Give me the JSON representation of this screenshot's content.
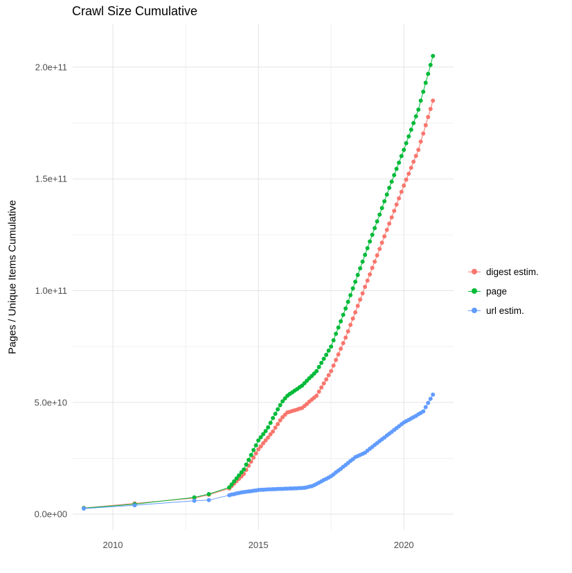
{
  "title": "Crawl Size Cumulative",
  "y_axis_label": "Pages / Unique Items Cumulative",
  "legend": {
    "items": [
      {
        "label": "digest estim.",
        "color": "#F8766D"
      },
      {
        "label": "page",
        "color": "#00BA38"
      },
      {
        "label": "url estim.",
        "color": "#619CFF"
      }
    ]
  },
  "chart_data": {
    "type": "line",
    "markers": true,
    "title": "Crawl Size Cumulative",
    "xlabel": "",
    "ylabel": "Pages / Unique Items Cumulative",
    "x_unit": "year",
    "y_values_unit": "billions (1e9) of pages / unique items",
    "xlim": [
      2008.62,
      2021.71
    ],
    "ylim_billions": [
      -7.1,
      219.2
    ],
    "grid": true,
    "legend_position": "right",
    "colors": {
      "grid_major": "#e3e3e3",
      "grid_minor": "#f0f0f0",
      "tick_label": "#4d4d4d",
      "background": "#ffffff"
    },
    "x_major_ticks": [
      {
        "value": 2010,
        "label": "2010"
      },
      {
        "value": 2015,
        "label": "2015"
      },
      {
        "value": 2020,
        "label": "2020"
      }
    ],
    "x_minor_ticks": [
      2012.5,
      2017.5
    ],
    "y_major_ticks": [
      {
        "value_billions": 0,
        "label": "0.0e+00"
      },
      {
        "value_billions": 50,
        "label": "5.0e+10"
      },
      {
        "value_billions": 100,
        "label": "1.0e+11"
      },
      {
        "value_billions": 150,
        "label": "1.5e+11"
      },
      {
        "value_billions": 200,
        "label": "2.0e+11"
      }
    ],
    "y_minor_ticks_billions": [
      25,
      75,
      125,
      175
    ],
    "series": [
      {
        "name": "digest estim.",
        "color": "#F8766D",
        "points": [
          [
            2009.0,
            2.8
          ],
          [
            2010.75,
            4.8
          ],
          [
            2012.8,
            7.2
          ],
          [
            2013.3,
            8.7
          ],
          [
            2014.0,
            11.5
          ],
          [
            2014.083,
            12.6
          ],
          [
            2014.167,
            13.7
          ],
          [
            2014.25,
            14.8
          ],
          [
            2014.333,
            15.8
          ],
          [
            2014.417,
            16.9
          ],
          [
            2014.5,
            18.0
          ],
          [
            2014.583,
            19.8
          ],
          [
            2014.667,
            21.7
          ],
          [
            2014.75,
            23.5
          ],
          [
            2014.833,
            25.3
          ],
          [
            2014.917,
            27.2
          ],
          [
            2015.0,
            29.0
          ],
          [
            2015.083,
            30.3
          ],
          [
            2015.167,
            31.7
          ],
          [
            2015.25,
            33.0
          ],
          [
            2015.333,
            34.3
          ],
          [
            2015.417,
            35.7
          ],
          [
            2015.5,
            37.0
          ],
          [
            2015.583,
            38.7
          ],
          [
            2015.667,
            40.3
          ],
          [
            2015.75,
            42.0
          ],
          [
            2015.833,
            43.4
          ],
          [
            2015.917,
            44.5
          ],
          [
            2016.0,
            45.5
          ],
          [
            2016.083,
            45.8
          ],
          [
            2016.167,
            46.2
          ],
          [
            2016.25,
            46.5
          ],
          [
            2016.333,
            46.8
          ],
          [
            2016.417,
            47.2
          ],
          [
            2016.5,
            47.5
          ],
          [
            2016.583,
            48.4
          ],
          [
            2016.667,
            49.3
          ],
          [
            2016.75,
            50.3
          ],
          [
            2016.833,
            51.2
          ],
          [
            2016.917,
            52.1
          ],
          [
            2017.0,
            53.0
          ],
          [
            2017.083,
            54.8
          ],
          [
            2017.167,
            56.7
          ],
          [
            2017.25,
            58.5
          ],
          [
            2017.333,
            60.3
          ],
          [
            2017.417,
            62.2
          ],
          [
            2017.5,
            64.0
          ],
          [
            2017.583,
            66.5
          ],
          [
            2017.667,
            69.0
          ],
          [
            2017.75,
            71.5
          ],
          [
            2017.833,
            74.0
          ],
          [
            2017.917,
            76.5
          ],
          [
            2018.0,
            79.0
          ],
          [
            2018.083,
            81.8
          ],
          [
            2018.167,
            84.7
          ],
          [
            2018.25,
            87.5
          ],
          [
            2018.333,
            90.3
          ],
          [
            2018.417,
            93.2
          ],
          [
            2018.5,
            96.0
          ],
          [
            2018.583,
            98.8
          ],
          [
            2018.667,
            101.7
          ],
          [
            2018.75,
            104.5
          ],
          [
            2018.833,
            107.3
          ],
          [
            2018.917,
            110.2
          ],
          [
            2019.0,
            113.0
          ],
          [
            2019.083,
            115.8
          ],
          [
            2019.167,
            118.7
          ],
          [
            2019.25,
            121.5
          ],
          [
            2019.333,
            124.3
          ],
          [
            2019.417,
            127.2
          ],
          [
            2019.5,
            130.0
          ],
          [
            2019.583,
            132.8
          ],
          [
            2019.667,
            135.7
          ],
          [
            2019.75,
            138.5
          ],
          [
            2019.833,
            141.3
          ],
          [
            2019.917,
            144.2
          ],
          [
            2020.0,
            147.0
          ],
          [
            2020.083,
            149.7
          ],
          [
            2020.167,
            152.3
          ],
          [
            2020.25,
            155.0
          ],
          [
            2020.333,
            157.7
          ],
          [
            2020.417,
            160.3
          ],
          [
            2020.5,
            163.0
          ],
          [
            2020.583,
            166.7
          ],
          [
            2020.667,
            170.3
          ],
          [
            2020.75,
            174.0
          ],
          [
            2020.833,
            177.7
          ],
          [
            2020.917,
            181.3
          ],
          [
            2021.0,
            185.0
          ]
        ]
      },
      {
        "name": "page",
        "color": "#00BA38",
        "points": [
          [
            2009.0,
            2.7
          ],
          [
            2010.75,
            4.5
          ],
          [
            2012.8,
            7.5
          ],
          [
            2013.3,
            9.0
          ],
          [
            2014.0,
            12.0
          ],
          [
            2014.083,
            13.3
          ],
          [
            2014.167,
            14.7
          ],
          [
            2014.25,
            16.0
          ],
          [
            2014.333,
            17.3
          ],
          [
            2014.417,
            18.7
          ],
          [
            2014.5,
            20.0
          ],
          [
            2014.583,
            22.2
          ],
          [
            2014.667,
            24.3
          ],
          [
            2014.75,
            26.5
          ],
          [
            2014.833,
            28.7
          ],
          [
            2014.917,
            30.8
          ],
          [
            2015.0,
            33.0
          ],
          [
            2015.083,
            34.4
          ],
          [
            2015.167,
            35.8
          ],
          [
            2015.25,
            37.2
          ],
          [
            2015.333,
            38.8
          ],
          [
            2015.417,
            40.9
          ],
          [
            2015.5,
            43.0
          ],
          [
            2015.583,
            44.9
          ],
          [
            2015.667,
            46.9
          ],
          [
            2015.75,
            48.8
          ],
          [
            2015.833,
            50.5
          ],
          [
            2015.917,
            51.8
          ],
          [
            2016.0,
            53.0
          ],
          [
            2016.083,
            53.8
          ],
          [
            2016.167,
            54.5
          ],
          [
            2016.25,
            55.3
          ],
          [
            2016.333,
            56.0
          ],
          [
            2016.417,
            56.8
          ],
          [
            2016.5,
            57.5
          ],
          [
            2016.583,
            58.6
          ],
          [
            2016.667,
            59.7
          ],
          [
            2016.75,
            60.8
          ],
          [
            2016.833,
            61.8
          ],
          [
            2016.917,
            62.9
          ],
          [
            2017.0,
            64.0
          ],
          [
            2017.083,
            65.8
          ],
          [
            2017.167,
            67.7
          ],
          [
            2017.25,
            69.5
          ],
          [
            2017.333,
            71.3
          ],
          [
            2017.417,
            73.2
          ],
          [
            2017.5,
            75.0
          ],
          [
            2017.583,
            77.8
          ],
          [
            2017.667,
            80.7
          ],
          [
            2017.75,
            83.5
          ],
          [
            2017.833,
            86.3
          ],
          [
            2017.917,
            89.2
          ],
          [
            2018.0,
            92.0
          ],
          [
            2018.083,
            95.0
          ],
          [
            2018.167,
            98.0
          ],
          [
            2018.25,
            101.0
          ],
          [
            2018.333,
            104.0
          ],
          [
            2018.417,
            107.0
          ],
          [
            2018.5,
            110.0
          ],
          [
            2018.583,
            113.0
          ],
          [
            2018.667,
            116.0
          ],
          [
            2018.75,
            119.0
          ],
          [
            2018.833,
            122.0
          ],
          [
            2018.917,
            125.0
          ],
          [
            2019.0,
            128.0
          ],
          [
            2019.083,
            131.0
          ],
          [
            2019.167,
            134.0
          ],
          [
            2019.25,
            137.0
          ],
          [
            2019.333,
            140.0
          ],
          [
            2019.417,
            143.0
          ],
          [
            2019.5,
            146.0
          ],
          [
            2019.583,
            148.8
          ],
          [
            2019.667,
            151.7
          ],
          [
            2019.75,
            154.5
          ],
          [
            2019.833,
            157.3
          ],
          [
            2019.917,
            160.2
          ],
          [
            2020.0,
            163.0
          ],
          [
            2020.083,
            166.0
          ],
          [
            2020.167,
            169.0
          ],
          [
            2020.25,
            172.0
          ],
          [
            2020.333,
            175.0
          ],
          [
            2020.417,
            178.0
          ],
          [
            2020.5,
            181.0
          ],
          [
            2020.583,
            185.0
          ],
          [
            2020.667,
            189.0
          ],
          [
            2020.75,
            193.0
          ],
          [
            2020.833,
            197.0
          ],
          [
            2020.917,
            201.0
          ],
          [
            2021.0,
            205.0
          ]
        ]
      },
      {
        "name": "url estim.",
        "color": "#619CFF",
        "points": [
          [
            2009.0,
            2.5
          ],
          [
            2010.75,
            4.0
          ],
          [
            2012.8,
            6.0
          ],
          [
            2013.3,
            6.3
          ],
          [
            2014.0,
            8.5
          ],
          [
            2014.083,
            8.8
          ],
          [
            2014.167,
            9.0
          ],
          [
            2014.25,
            9.3
          ],
          [
            2014.333,
            9.5
          ],
          [
            2014.417,
            9.7
          ],
          [
            2014.5,
            9.9
          ],
          [
            2014.583,
            10.0
          ],
          [
            2014.667,
            10.2
          ],
          [
            2014.75,
            10.3
          ],
          [
            2014.833,
            10.5
          ],
          [
            2014.917,
            10.6
          ],
          [
            2015.0,
            10.8
          ],
          [
            2015.083,
            10.9
          ],
          [
            2015.167,
            10.9
          ],
          [
            2015.25,
            11.0
          ],
          [
            2015.333,
            11.1
          ],
          [
            2015.417,
            11.1
          ],
          [
            2015.5,
            11.2
          ],
          [
            2015.583,
            11.2
          ],
          [
            2015.667,
            11.3
          ],
          [
            2015.75,
            11.3
          ],
          [
            2015.833,
            11.3
          ],
          [
            2015.917,
            11.4
          ],
          [
            2016.0,
            11.4
          ],
          [
            2016.083,
            11.5
          ],
          [
            2016.167,
            11.5
          ],
          [
            2016.25,
            11.6
          ],
          [
            2016.333,
            11.6
          ],
          [
            2016.417,
            11.7
          ],
          [
            2016.5,
            11.7
          ],
          [
            2016.583,
            11.8
          ],
          [
            2016.667,
            12.0
          ],
          [
            2016.75,
            12.3
          ],
          [
            2016.833,
            12.5
          ],
          [
            2016.917,
            13.0
          ],
          [
            2017.0,
            13.5
          ],
          [
            2017.083,
            14.1
          ],
          [
            2017.167,
            14.7
          ],
          [
            2017.25,
            15.3
          ],
          [
            2017.333,
            15.8
          ],
          [
            2017.417,
            16.4
          ],
          [
            2017.5,
            17.0
          ],
          [
            2017.583,
            17.8
          ],
          [
            2017.667,
            18.7
          ],
          [
            2017.75,
            19.5
          ],
          [
            2017.833,
            20.3
          ],
          [
            2017.917,
            21.2
          ],
          [
            2018.0,
            22.0
          ],
          [
            2018.083,
            22.9
          ],
          [
            2018.167,
            23.8
          ],
          [
            2018.25,
            24.6
          ],
          [
            2018.333,
            25.5
          ],
          [
            2018.417,
            26.0
          ],
          [
            2018.5,
            26.5
          ],
          [
            2018.583,
            27.0
          ],
          [
            2018.667,
            27.5
          ],
          [
            2018.75,
            28.4
          ],
          [
            2018.833,
            29.3
          ],
          [
            2018.917,
            30.1
          ],
          [
            2019.0,
            31.0
          ],
          [
            2019.083,
            31.8
          ],
          [
            2019.167,
            32.7
          ],
          [
            2019.25,
            33.5
          ],
          [
            2019.333,
            34.3
          ],
          [
            2019.417,
            35.2
          ],
          [
            2019.5,
            36.0
          ],
          [
            2019.583,
            36.8
          ],
          [
            2019.667,
            37.7
          ],
          [
            2019.75,
            38.5
          ],
          [
            2019.833,
            39.3
          ],
          [
            2019.917,
            40.2
          ],
          [
            2020.0,
            41.0
          ],
          [
            2020.083,
            41.6
          ],
          [
            2020.167,
            42.2
          ],
          [
            2020.25,
            42.8
          ],
          [
            2020.333,
            43.4
          ],
          [
            2020.417,
            44.0
          ],
          [
            2020.5,
            44.7
          ],
          [
            2020.583,
            45.3
          ],
          [
            2020.667,
            46.0
          ],
          [
            2020.75,
            47.9
          ],
          [
            2020.833,
            49.8
          ],
          [
            2020.917,
            51.6
          ],
          [
            2021.0,
            53.5
          ]
        ]
      }
    ]
  }
}
